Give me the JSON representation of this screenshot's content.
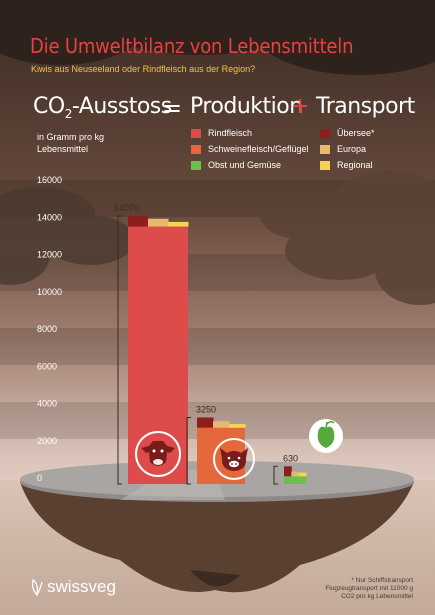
{
  "title": "Die Umweltbilanz von Lebensmitteln",
  "subtitle": "Kiwis aus Neuseeland oder Rindfleisch aus der Region?",
  "equation": {
    "lhs_main": "CO",
    "lhs_sub": "2",
    "lhs_rest": "-Ausstoss",
    "equals": "=",
    "production": "Produktion",
    "plus": "+",
    "transport": "Transport"
  },
  "unit_label": "in Gramm pro kg Lebensmittel",
  "legend": {
    "production": [
      {
        "label": "Rindfleisch",
        "color": "#dd4c4a"
      },
      {
        "label": "Schweinefleisch/Geflügel",
        "color": "#e5673c"
      },
      {
        "label": "Obst und Gemüse",
        "color": "#6cc04a"
      }
    ],
    "transport": [
      {
        "label": "Übersee*",
        "color": "#8c1f1c"
      },
      {
        "label": "Europa",
        "color": "#e7b96a"
      },
      {
        "label": "Regional",
        "color": "#f6d453"
      }
    ]
  },
  "chart_data": {
    "type": "bar",
    "title": "Die Umweltbilanz von Lebensmitteln",
    "subtitle": "Kiwis aus Neuseeland oder Rindfleisch aus der Region?",
    "ylabel": "in Gramm pro kg Lebensmittel",
    "ylim": [
      0,
      16000
    ],
    "yticks": [
      0,
      2000,
      4000,
      6000,
      8000,
      10000,
      12000,
      14000,
      16000
    ],
    "categories": [
      "Rindfleisch",
      "Schweinefleisch/Geflügel",
      "Obst und Gemüse"
    ],
    "values": [
      14070,
      3250,
      630
    ],
    "production": [
      13500,
      2700,
      90
    ],
    "transport_series": [
      {
        "name": "Übersee*",
        "values": [
          570,
          550,
          540
        ]
      },
      {
        "name": "Europa",
        "values": [
          420,
          350,
          250
        ]
      },
      {
        "name": "Regional",
        "values": [
          250,
          200,
          200
        ]
      }
    ],
    "colors": {
      "Rindfleisch": "#dd4c4a",
      "Schweinefleisch/Geflügel": "#e5673c",
      "Obst und Gemüse": "#6cc04a",
      "Übersee*": "#8c1f1c",
      "Europa": "#e7b96a",
      "Regional": "#f6d453"
    },
    "icons": [
      "cow-icon",
      "pig-icon",
      "apple-icon"
    ]
  },
  "footnote": {
    "line1": "* Nur Schiffstransport",
    "line2": "Flugzeugtransport mit 11000 g",
    "line3": "CO2 pro kg Lebensmittel"
  },
  "brand": "swissveg"
}
